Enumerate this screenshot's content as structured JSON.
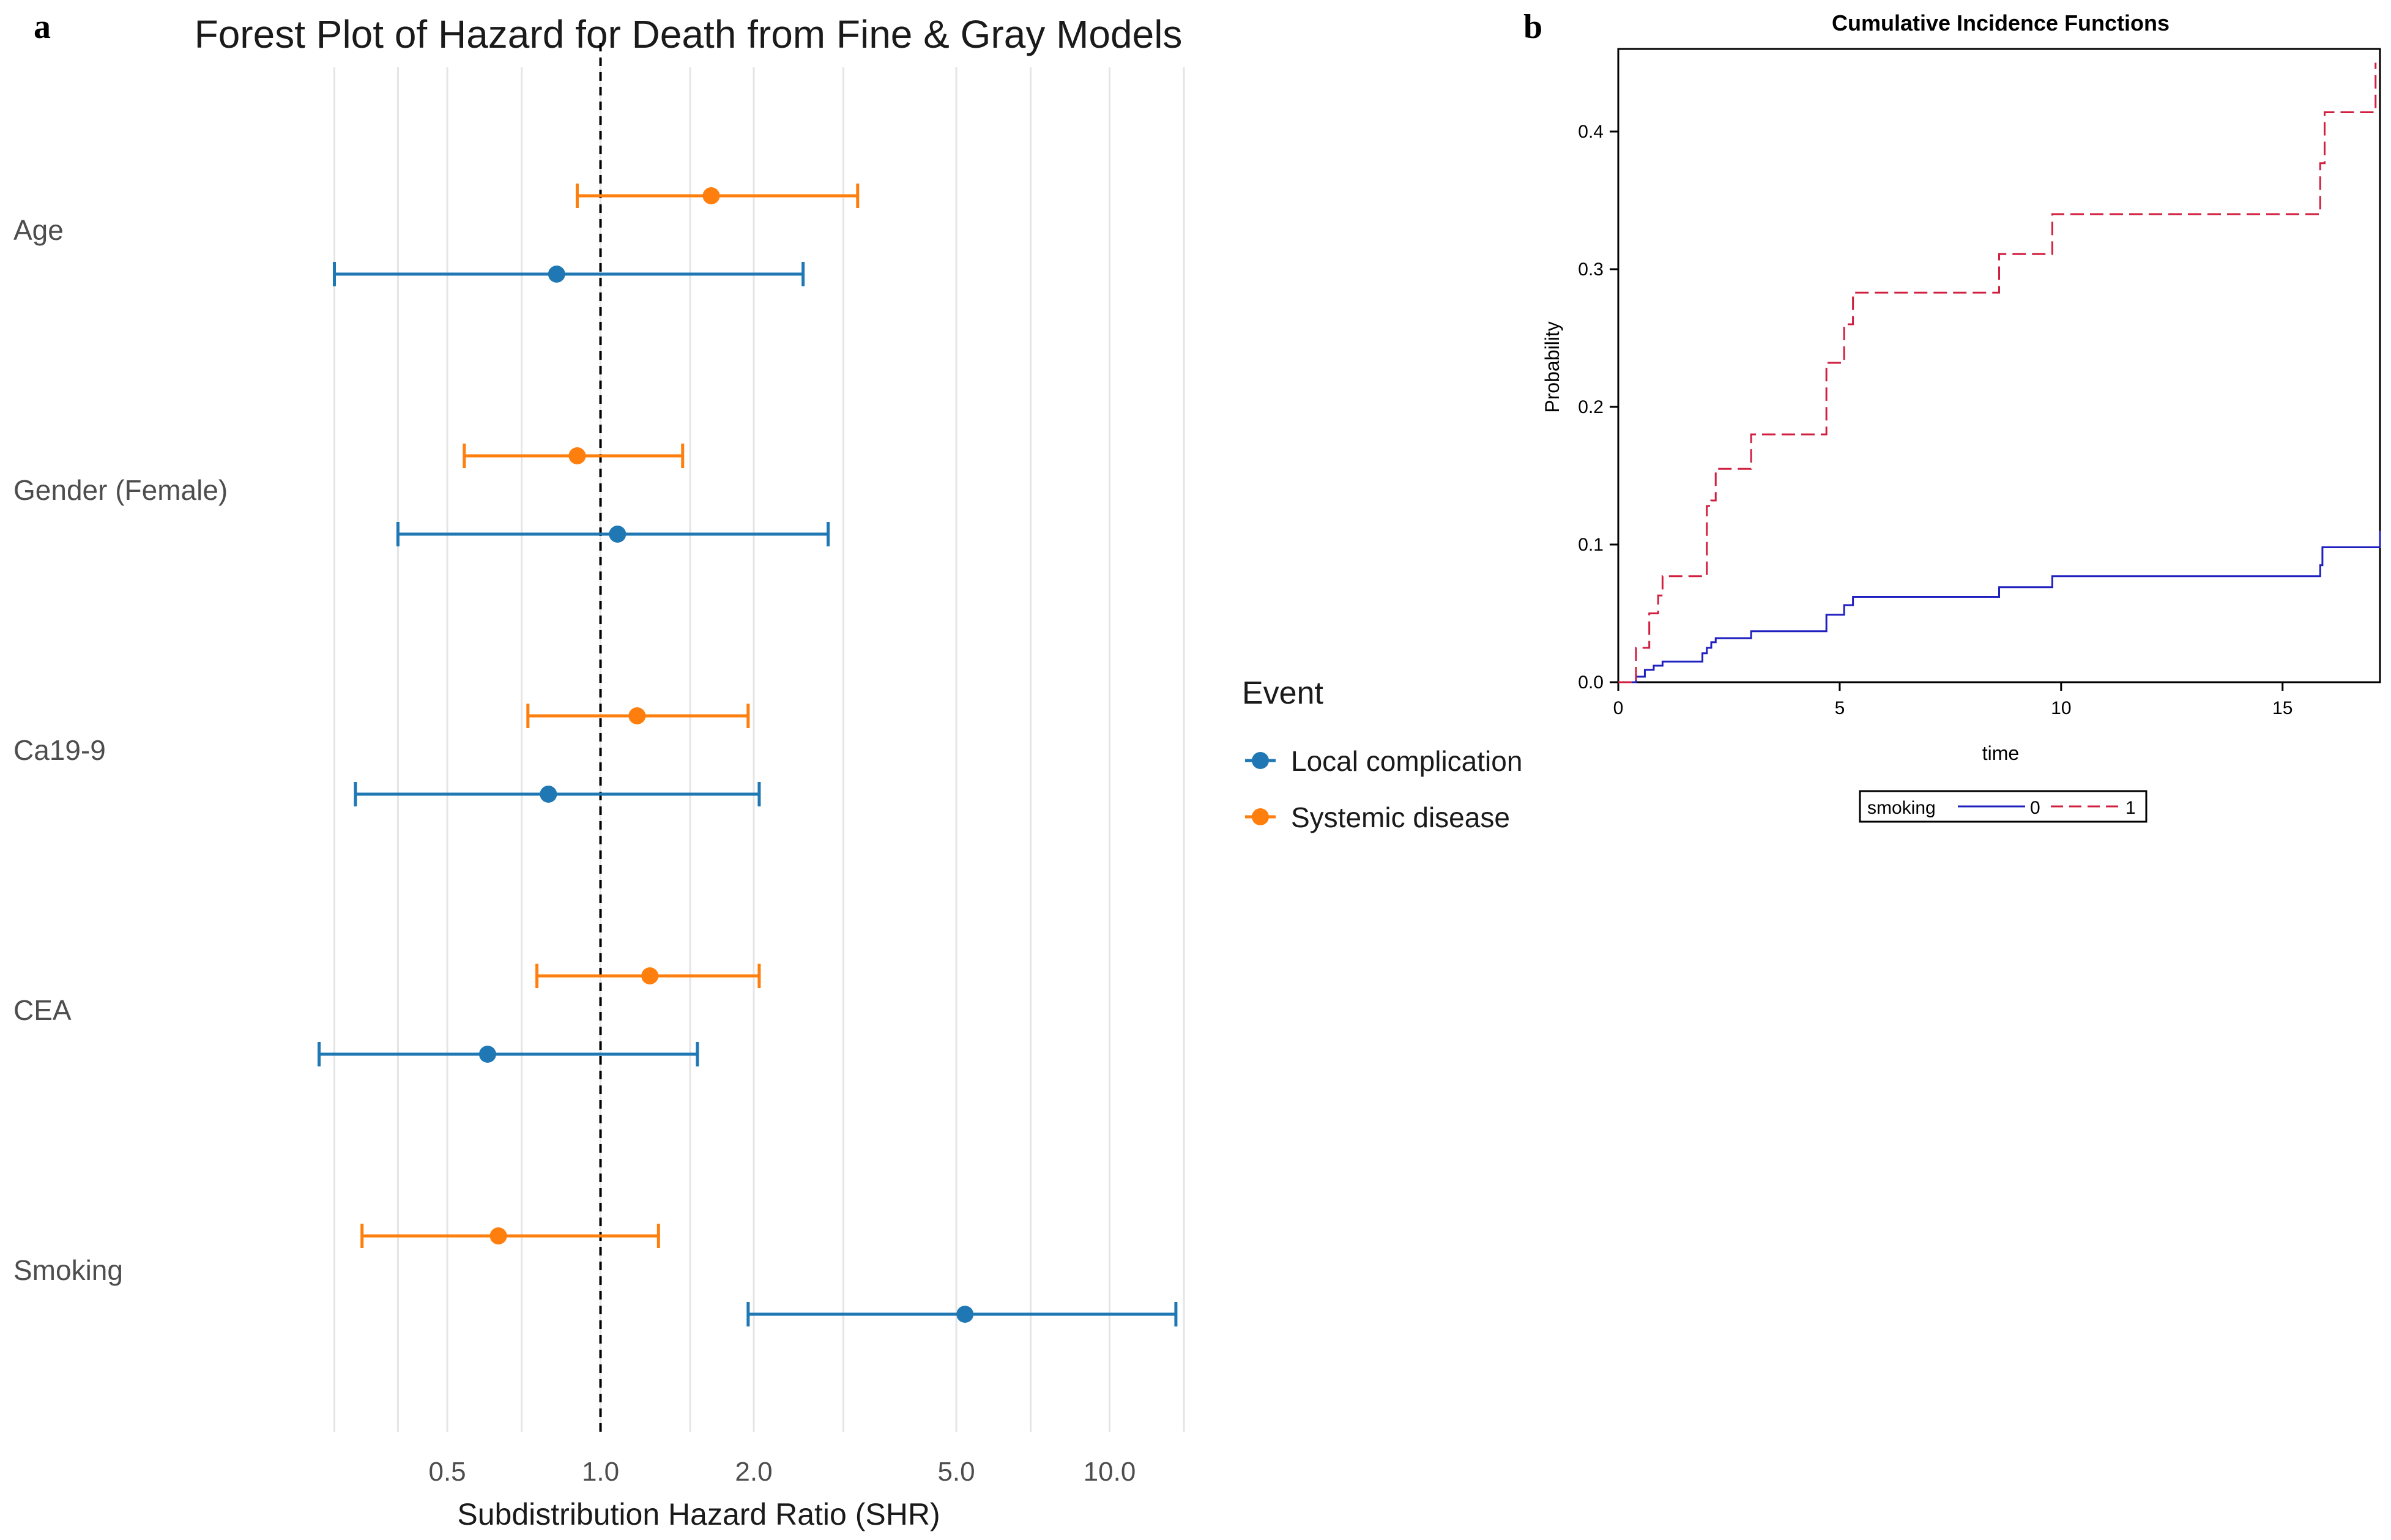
{
  "panels": {
    "a_label": "a",
    "b_label": "b"
  },
  "colors": {
    "local": "#1f78b4",
    "systemic": "#ff7f0e",
    "smoking0": "#2020c0",
    "smoking1": "#d02040",
    "grid": "#e5e5e5",
    "text_gray": "#4d4d4d"
  },
  "chart_data": [
    {
      "id": "forest",
      "type": "scatter",
      "subtype": "forest-plot",
      "title": "Forest Plot of Hazard for Death from Fine & Gray Models",
      "xlabel": "Subdistribution Hazard Ratio (SHR)",
      "xscale": "log",
      "xlim": [
        0.2,
        15.0
      ],
      "xticks": [
        0.5,
        1.0,
        2.0,
        5.0,
        10.0
      ],
      "xtick_labels": [
        "0.5",
        "1.0",
        "2.0",
        "5.0",
        "10.0"
      ],
      "reference_line": 1.0,
      "legend_title": "Event",
      "legend_position": "right",
      "legend": [
        "Local complication",
        "Systemic disease"
      ],
      "categories": [
        "Age",
        "Gender (Female)",
        "Ca19-9",
        "CEA",
        "Smoking"
      ],
      "series": [
        {
          "name": "Systemic disease",
          "points": [
            {
              "label": "Age",
              "est": 1.65,
              "lo": 0.9,
              "hi": 3.2
            },
            {
              "label": "Gender (Female)",
              "est": 0.9,
              "lo": 0.54,
              "hi": 1.45
            },
            {
              "label": "Ca19-9",
              "est": 1.18,
              "lo": 0.72,
              "hi": 1.95
            },
            {
              "label": "CEA",
              "est": 1.25,
              "lo": 0.75,
              "hi": 2.05
            },
            {
              "label": "Smoking",
              "est": 0.63,
              "lo": 0.34,
              "hi": 1.3
            }
          ]
        },
        {
          "name": "Local complication",
          "points": [
            {
              "label": "Age",
              "est": 0.82,
              "lo": 0.3,
              "hi": 2.5
            },
            {
              "label": "Gender (Female)",
              "est": 1.08,
              "lo": 0.4,
              "hi": 2.8
            },
            {
              "label": "Ca19-9",
              "est": 0.79,
              "lo": 0.33,
              "hi": 2.05
            },
            {
              "label": "CEA",
              "est": 0.6,
              "lo": 0.28,
              "hi": 1.55
            },
            {
              "label": "Smoking",
              "est": 5.2,
              "lo": 1.95,
              "hi": 13.5
            }
          ]
        }
      ]
    },
    {
      "id": "cif",
      "type": "line",
      "subtype": "step",
      "title": "Cumulative Incidence Functions",
      "xlabel": "time",
      "ylabel": "Probability",
      "xlim": [
        0,
        17.2
      ],
      "ylim": [
        0,
        0.46
      ],
      "xticks": [
        0,
        5,
        10,
        15
      ],
      "yticks": [
        0.0,
        0.1,
        0.2,
        0.3,
        0.4
      ],
      "ytick_labels": [
        "0.0",
        "0.1",
        "0.2",
        "0.3",
        "0.4"
      ],
      "legend_title": "smoking",
      "legend_position": "bottom",
      "series": [
        {
          "name": "0",
          "style": "solid",
          "x": [
            0,
            0.4,
            0.6,
            0.8,
            1.0,
            1.9,
            2.0,
            2.1,
            2.2,
            3.0,
            4.7,
            5.1,
            5.3,
            8.6,
            9.8,
            15.85,
            15.9,
            17.2
          ],
          "y": [
            0,
            0.004,
            0.009,
            0.012,
            0.015,
            0.021,
            0.025,
            0.029,
            0.032,
            0.037,
            0.049,
            0.056,
            0.062,
            0.069,
            0.077,
            0.085,
            0.098,
            0.11
          ]
        },
        {
          "name": "1",
          "style": "dashed",
          "x": [
            0,
            0.4,
            0.7,
            0.9,
            1.0,
            2.0,
            2.1,
            2.2,
            3.0,
            4.7,
            5.1,
            5.3,
            8.6,
            9.8,
            15.85,
            15.95,
            17.1
          ],
          "y": [
            0,
            0.025,
            0.05,
            0.063,
            0.077,
            0.128,
            0.132,
            0.155,
            0.18,
            0.232,
            0.26,
            0.283,
            0.311,
            0.34,
            0.377,
            0.414,
            0.45
          ]
        }
      ]
    }
  ]
}
